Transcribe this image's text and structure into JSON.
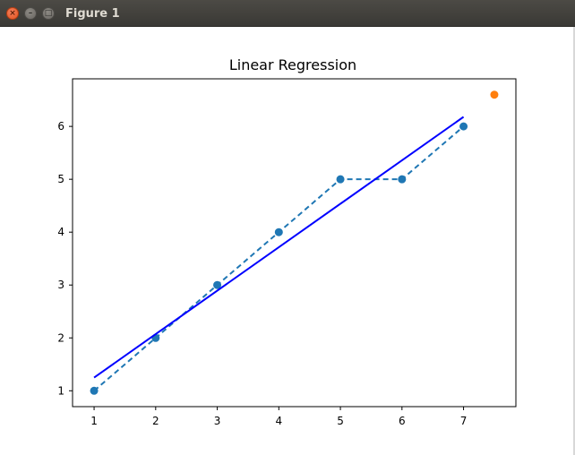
{
  "window": {
    "title": "Figure 1",
    "close_glyph": "×",
    "minimize_glyph": "–",
    "maximize_glyph": "□",
    "close_icon": "close-icon",
    "minimize_icon": "minimize-icon",
    "maximize_icon": "maximize-icon"
  },
  "chart_data": {
    "type": "line",
    "title": "Linear Regression",
    "xlabel": "",
    "ylabel": "",
    "xlim": [
      0.65,
      7.85
    ],
    "ylim": [
      0.7,
      6.9
    ],
    "xticks": [
      1,
      2,
      3,
      4,
      5,
      6,
      7
    ],
    "yticks": [
      1,
      2,
      3,
      4,
      5,
      6
    ],
    "grid": false,
    "series": [
      {
        "kind": "scatter-dashed-line",
        "color": "#1f77b4",
        "x": [
          1,
          2,
          3,
          4,
          5,
          6,
          7
        ],
        "y": [
          1,
          2,
          3,
          4,
          5,
          5,
          6
        ]
      },
      {
        "kind": "fit-line",
        "color": "#0000ff",
        "x": [
          1,
          7
        ],
        "y": [
          1.25,
          6.18
        ]
      },
      {
        "kind": "point",
        "color": "#ff7f0e",
        "x": [
          7.5
        ],
        "y": [
          6.6
        ]
      }
    ]
  }
}
